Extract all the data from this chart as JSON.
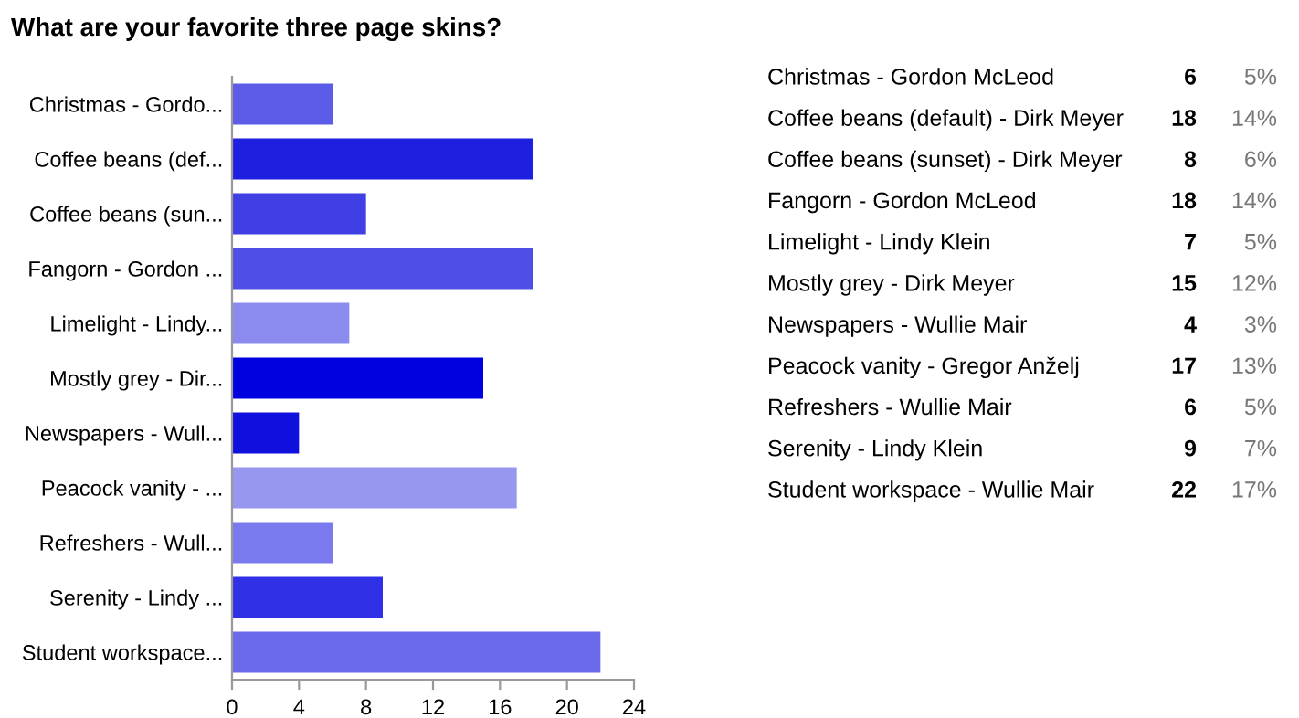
{
  "chart_data": {
    "type": "bar",
    "orientation": "horizontal",
    "title": "What are your favorite three page skins?",
    "categories": [
      "Christmas - Gordo...",
      "Coffee beans (def...",
      "Coffee beans (sun...",
      "Fangorn - Gordon ...",
      "Limelight - Lindy...",
      "Mostly grey - Dir...",
      "Newspapers - Wull...",
      "Peacock vanity - ...",
      "Refreshers - Wull...",
      "Serenity - Lindy ...",
      "Student workspace..."
    ],
    "values": [
      6,
      18,
      8,
      18,
      7,
      15,
      4,
      17,
      6,
      9,
      22
    ],
    "colors": [
      "#5c5ce8",
      "#1f1fe0",
      "#3f3fe3",
      "#4f4fe6",
      "#8b8bef",
      "#0000e0",
      "#1010de",
      "#9797f0",
      "#7a7aee",
      "#3030e6",
      "#6a6aeb"
    ],
    "xlim": [
      0,
      24
    ],
    "xticks": [
      0,
      4,
      8,
      12,
      16,
      20,
      24
    ],
    "grid": false,
    "legend": false,
    "annotations": [
      "Christmas - Gordon McLeod",
      "Coffee beans (default) - Dirk Meyer",
      "Coffee beans (sunset) - Dirk Meyer",
      "Fangorn - Gordon McLeod",
      "Limelight - Lindy Klein",
      "Mostly grey - Dirk Meyer",
      "Newspapers - Wullie Mair",
      "Peacock vanity - Gregor Anželj",
      "Refreshers - Wullie Mair",
      "Serenity - Lindy Klein",
      "Student workspace - Wullie Mair",
      "6",
      "18",
      "8",
      "18",
      "7",
      "15",
      "4",
      "17",
      "6",
      "9",
      "22",
      "5%",
      "14%",
      "6%",
      "14%",
      "5%",
      "12%",
      "3%",
      "13%",
      "5%",
      "7%",
      "17%"
    ]
  }
}
